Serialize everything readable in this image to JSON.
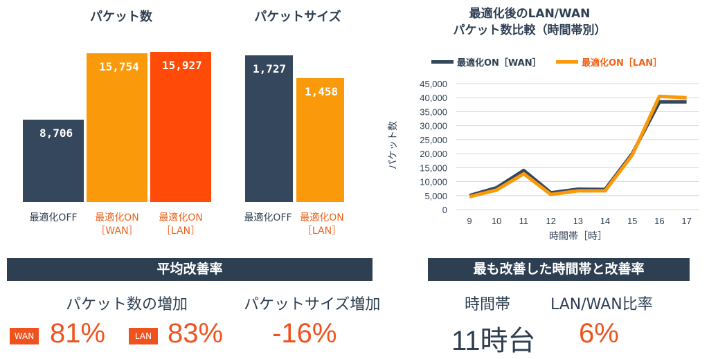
{
  "colors": {
    "navy": "#34475c",
    "orange": "#fa9a0a",
    "red": "#ff4a08",
    "accent_text": "#f0621a"
  },
  "chart_data": [
    {
      "type": "bar",
      "title": "パケット数",
      "categories": [
        "最適化OFF",
        "最適化ON\n［WAN］",
        "最適化ON\n［LAN］"
      ],
      "values": [
        8706,
        15754,
        15927
      ],
      "value_labels": [
        "8,706",
        "15,754",
        "15,927"
      ],
      "colors": [
        "#34475c",
        "#fa9a0a",
        "#ff4a08"
      ]
    },
    {
      "type": "bar",
      "title": "パケットサイズ",
      "categories": [
        "最適化OFF",
        "最適化ON\n［LAN］"
      ],
      "values": [
        1727,
        1458
      ],
      "value_labels": [
        "1,727",
        "1,458"
      ],
      "colors": [
        "#34475c",
        "#fa9a0a"
      ]
    },
    {
      "type": "line",
      "title": "最適化後のLAN/WAN\nパケット数比較（時間帯別）",
      "xlabel": "時間帯［時］",
      "ylabel": "パケット数",
      "x": [
        9,
        10,
        11,
        12,
        13,
        14,
        15,
        16,
        17
      ],
      "ylim": [
        0,
        45000
      ],
      "yticks": [
        "0",
        "5,000",
        "10,000",
        "15,000",
        "20,000",
        "25,000",
        "30,000",
        "35,000",
        "40,000",
        "45,000"
      ],
      "grid": true,
      "legend": "top",
      "series": [
        {
          "name": "最適化ON［WAN］",
          "color": "#34475c",
          "values": [
            5000,
            7800,
            14000,
            6000,
            7300,
            7200,
            20000,
            38500,
            38500
          ]
        },
        {
          "name": "最適化ON［LAN］",
          "color": "#fa9a0a",
          "values": [
            4600,
            7000,
            12800,
            5400,
            6700,
            6700,
            19500,
            40500,
            40000
          ]
        }
      ]
    }
  ],
  "summary": {
    "avg_banner": "平均改善率",
    "packet_increase_label": "パケット数の増加",
    "wan_badge": "WAN",
    "wan_value": "81%",
    "lan_badge": "LAN",
    "lan_value": "83%",
    "size_increase_label": "パケットサイズ増加",
    "size_value": "-16%",
    "best_banner": "最も改善した時間帯と改善率",
    "time_label": "時間帯",
    "time_value": "11時台",
    "ratio_label": "LAN/WAN比率",
    "ratio_value": "6%"
  }
}
